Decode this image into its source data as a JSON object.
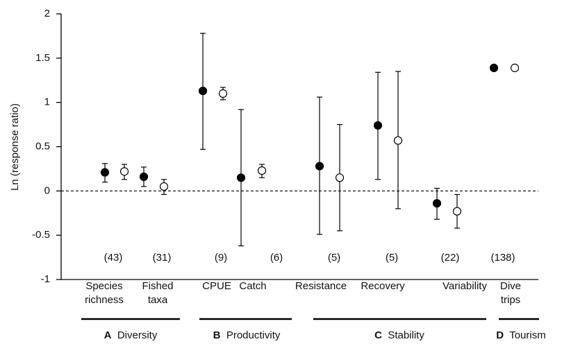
{
  "chart_data": {
    "type": "errorbar",
    "y_label": "Ln (response ratio)",
    "categories": [
      [
        "Species",
        "richness"
      ],
      [
        "Fished",
        "taxa"
      ],
      [
        "CPUE"
      ],
      [
        "Catch"
      ],
      [
        "Resistance"
      ],
      [
        "Recovery"
      ],
      [
        "Variability"
      ],
      [
        "Dive",
        "trips"
      ]
    ],
    "n_labels": [
      "(43)",
      "(31)",
      "(9)",
      "(6)",
      "(5)",
      "(5)",
      "(22)",
      "(138)"
    ],
    "groups": [
      {
        "letter": "A",
        "name": "Diversity"
      },
      {
        "letter": "B",
        "name": "Productivity"
      },
      {
        "letter": "C",
        "name": "Stability"
      },
      {
        "letter": "D",
        "name": "Tourism"
      }
    ],
    "series": [
      {
        "color": "#000000",
        "values": [
          0.21,
          0.16,
          1.13,
          0.15,
          0.28,
          0.74,
          -0.14,
          1.39
        ],
        "lower": [
          0.1,
          0.05,
          0.47,
          -0.62,
          -0.49,
          0.13,
          -0.32,
          null
        ],
        "upper": [
          0.31,
          0.27,
          1.78,
          0.92,
          1.06,
          1.34,
          0.03,
          null
        ]
      },
      {
        "color": "#ffffff",
        "values": [
          0.22,
          0.05,
          1.1,
          0.23,
          0.15,
          0.57,
          -0.23,
          1.39
        ],
        "lower": [
          0.13,
          -0.04,
          1.03,
          0.15,
          -0.45,
          -0.2,
          -0.42,
          null
        ],
        "upper": [
          0.3,
          0.13,
          1.17,
          0.3,
          0.75,
          1.35,
          -0.04,
          null
        ]
      }
    ],
    "reference_line": 0,
    "ylim": [
      -1,
      2
    ],
    "yticks": [
      -1,
      -0.5,
      0,
      0.5,
      1,
      1.5,
      2
    ]
  }
}
